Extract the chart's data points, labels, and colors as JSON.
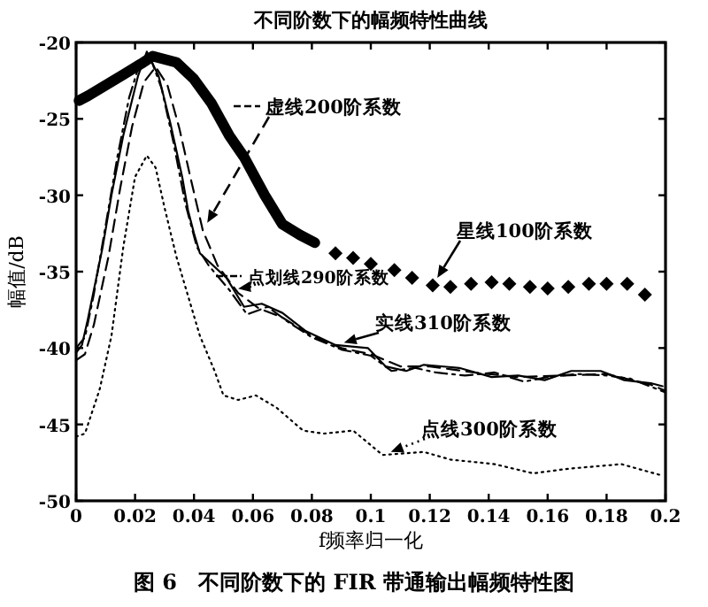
{
  "chart_data": {
    "type": "line",
    "title": "不同阶数下的幅频特性曲线",
    "xlabel": "f频率归一化",
    "ylabel": "幅值/dB",
    "xlim": [
      0,
      0.2
    ],
    "ylim": [
      -50,
      -20
    ],
    "xticks": [
      0,
      0.02,
      0.04,
      0.06,
      0.08,
      0.1,
      0.12,
      0.14,
      0.16,
      0.18,
      0.2
    ],
    "yticks": [
      -50,
      -45,
      -40,
      -35,
      -30,
      -25,
      -20
    ],
    "grid": false,
    "legend": "right",
    "series": [
      {
        "color": "#000000",
        "line_style": "solid",
        "x": [
          0.001,
          0.004,
          0.01,
          0.016,
          0.022,
          0.026,
          0.034,
          0.04,
          0.046,
          0.052,
          0.057,
          0.064,
          0.07,
          0.076,
          0.081
        ],
        "values": [
          -23.8,
          -23.5,
          -22.8,
          -22.1,
          -21.4,
          -20.9,
          -21.3,
          -22.4,
          -24.0,
          -26.1,
          -27.5,
          -30.0,
          -31.9,
          -32.6,
          -33.1
        ]
      },
      {
        "name": "星线100阶系数",
        "type": "scatter",
        "marker": "diamond",
        "color": "#000000",
        "x": [
          0.088,
          0.094,
          0.1,
          0.108,
          0.114,
          0.121,
          0.127,
          0.134,
          0.141,
          0.147,
          0.154,
          0.16,
          0.167,
          0.174,
          0.18,
          0.187,
          0.193
        ],
        "values": [
          -33.8,
          -34.1,
          -34.5,
          -34.9,
          -35.4,
          -35.9,
          -36.0,
          -35.8,
          -35.7,
          -35.8,
          -36.0,
          -36.1,
          -36.0,
          -35.8,
          -35.8,
          -35.8,
          -36.5
        ]
      },
      {
        "name": "实线310阶系数",
        "color": "#000000",
        "line_style": "solid",
        "x": [
          0,
          0.002,
          0.004,
          0.009,
          0.012,
          0.016,
          0.021,
          0.024,
          0.028,
          0.032,
          0.036,
          0.038,
          0.04,
          0.042,
          0.051,
          0.057,
          0.063,
          0.07,
          0.078,
          0.088,
          0.099,
          0.105,
          0.112,
          0.118,
          0.13,
          0.141,
          0.15,
          0.159,
          0.168,
          0.178,
          0.186,
          0.195,
          0.199
        ],
        "values": [
          -40.3,
          -39.8,
          -38.1,
          -33.4,
          -30.0,
          -26.1,
          -22.2,
          -20.6,
          -22.2,
          -25.3,
          -28.8,
          -31.0,
          -32.5,
          -33.8,
          -35.4,
          -37.3,
          -37.1,
          -37.7,
          -38.9,
          -39.8,
          -40.0,
          -41.2,
          -41.5,
          -41.1,
          -41.3,
          -41.9,
          -41.8,
          -42.1,
          -41.5,
          -41.5,
          -42.1,
          -42.3,
          -42.5
        ]
      },
      {
        "name": "点划线290阶系数",
        "color": "#000000",
        "line_style": "dashdot",
        "x": [
          0,
          0.003,
          0.006,
          0.01,
          0.014,
          0.018,
          0.022,
          0.025,
          0.029,
          0.033,
          0.037,
          0.041,
          0.045,
          0.052,
          0.058,
          0.065,
          0.072,
          0.08,
          0.09,
          0.1,
          0.107,
          0.115,
          0.122,
          0.132,
          0.142,
          0.152,
          0.16,
          0.17,
          0.18,
          0.188,
          0.196,
          0.2
        ],
        "values": [
          -40.0,
          -39.3,
          -36.5,
          -32.0,
          -27.5,
          -23.6,
          -21.1,
          -20.9,
          -23.0,
          -26.5,
          -30.5,
          -33.4,
          -34.6,
          -36.2,
          -37.8,
          -37.3,
          -38.3,
          -39.3,
          -40.1,
          -40.5,
          -41.5,
          -41.3,
          -41.6,
          -41.8,
          -41.6,
          -42.2,
          -41.9,
          -41.7,
          -41.8,
          -42.0,
          -42.6,
          -42.9
        ]
      },
      {
        "name": "虚线200阶系数",
        "color": "#000000",
        "line_style": "dashed",
        "x": [
          0,
          0.003,
          0.006,
          0.011,
          0.015,
          0.019,
          0.023,
          0.027,
          0.031,
          0.035,
          0.039,
          0.043,
          0.048,
          0.055,
          0.062,
          0.07,
          0.08,
          0.09,
          0.1,
          0.11,
          0.12,
          0.135,
          0.15,
          0.165,
          0.18,
          0.195,
          0.2
        ],
        "values": [
          -40.8,
          -40.4,
          -38.5,
          -34.0,
          -29.5,
          -25.5,
          -22.6,
          -21.6,
          -22.8,
          -25.6,
          -29.0,
          -32.3,
          -34.6,
          -36.4,
          -37.4,
          -38.0,
          -39.2,
          -40.0,
          -40.4,
          -41.2,
          -41.2,
          -41.6,
          -41.9,
          -41.8,
          -41.7,
          -42.4,
          -42.8
        ]
      },
      {
        "name": "点线300阶系数",
        "color": "#000000",
        "line_style": "dotted",
        "x": [
          0,
          0.003,
          0.008,
          0.012,
          0.016,
          0.02,
          0.024,
          0.027,
          0.03,
          0.034,
          0.038,
          0.042,
          0.047,
          0.05,
          0.055,
          0.061,
          0.068,
          0.077,
          0.084,
          0.094,
          0.104,
          0.118,
          0.127,
          0.142,
          0.155,
          0.167,
          0.185,
          0.198
        ],
        "values": [
          -45.8,
          -45.6,
          -42.7,
          -39.2,
          -33.4,
          -28.8,
          -27.4,
          -28.2,
          -30.8,
          -34.0,
          -36.6,
          -39.2,
          -41.5,
          -43.1,
          -43.4,
          -43.1,
          -43.9,
          -45.4,
          -45.6,
          -45.4,
          -47.0,
          -46.8,
          -47.3,
          -47.6,
          -48.2,
          -47.9,
          -47.6,
          -48.3
        ]
      }
    ],
    "annotations": [
      "图 6　不同阶数下的 FIR 带通输出幅频特性图"
    ]
  }
}
